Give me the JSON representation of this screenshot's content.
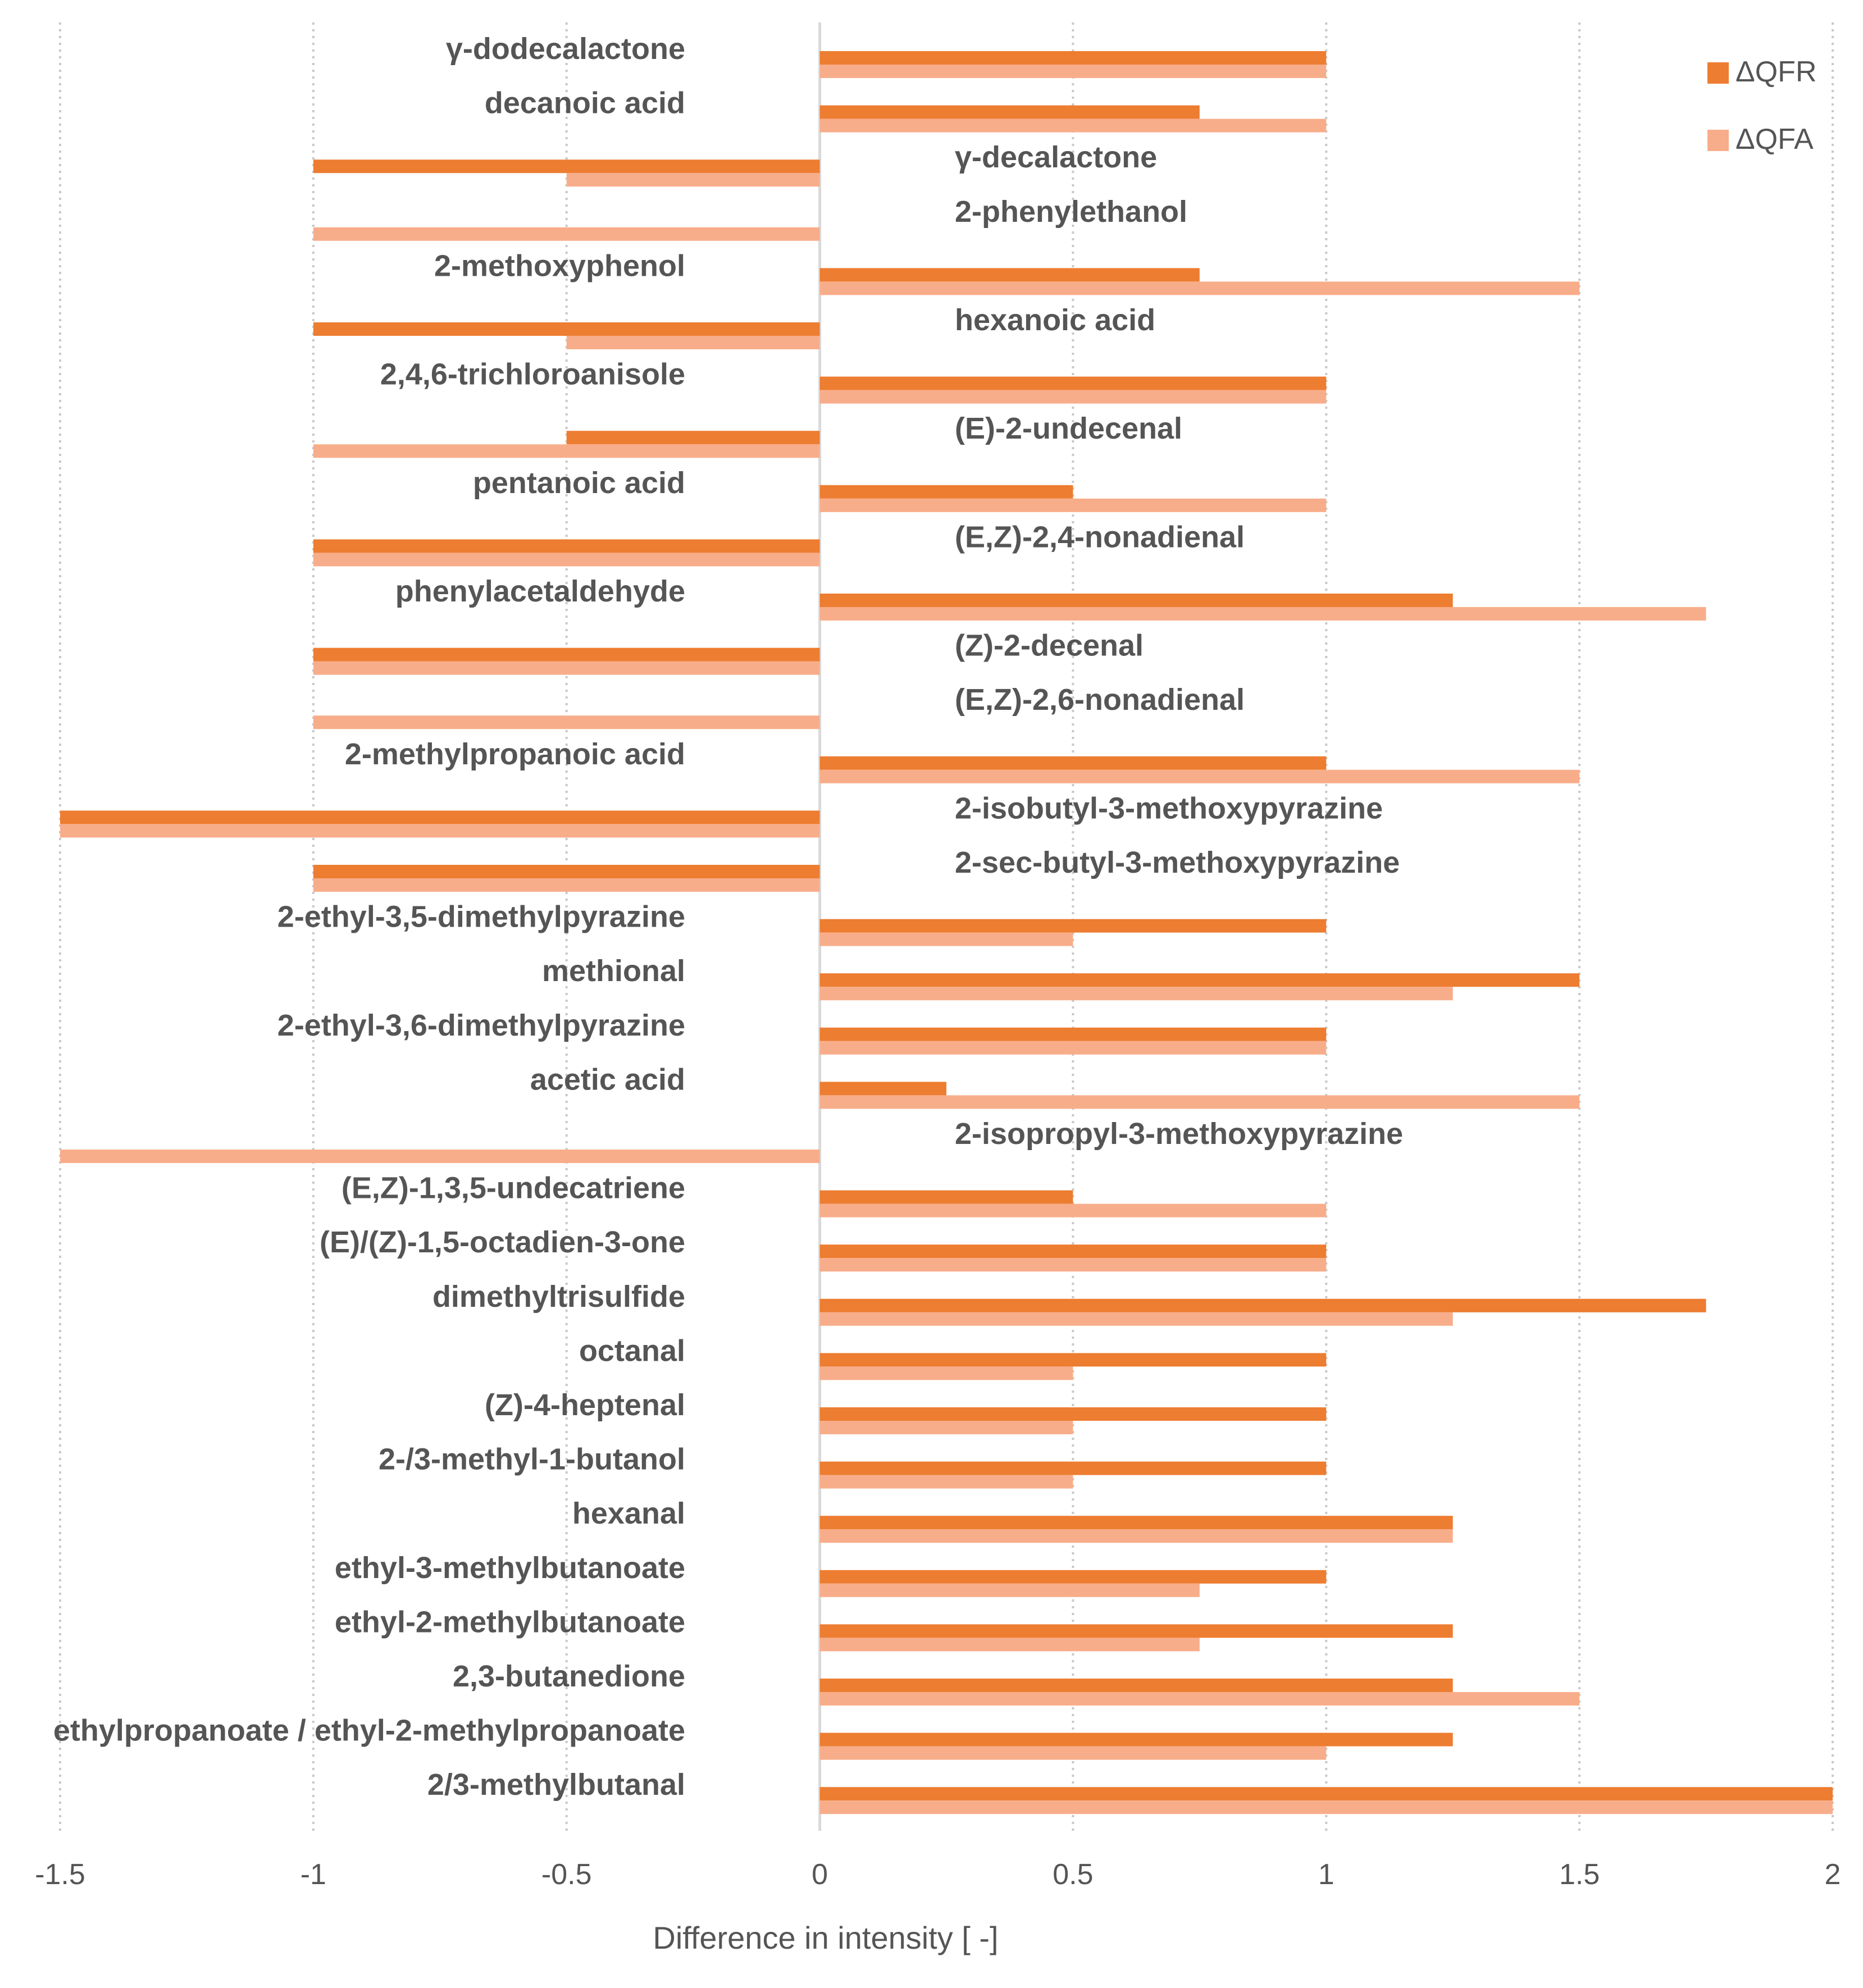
{
  "chart_data": {
    "type": "bar",
    "orientation": "horizontal",
    "xlabel": "Difference in intensity [ -]",
    "ylabel": "",
    "xlim": [
      -1.5,
      2
    ],
    "xticks": [
      -1.5,
      -1,
      -0.5,
      0,
      0.5,
      1,
      1.5,
      2
    ],
    "xtick_labels": [
      "-1.5",
      "-1",
      "-0.5",
      "0",
      "0.5",
      "1",
      "1.5",
      "2"
    ],
    "grid": "vertical dashed",
    "legend_position": "top-right",
    "colors": {
      "dQFR": "#ed7d31",
      "dQFA": "#f8ad8a"
    },
    "categories": [
      "γ-dodecalactone",
      "decanoic acid",
      "γ-decalactone",
      "2-phenylethanol",
      "2-methoxyphenol",
      "hexanoic acid",
      "2,4,6-trichloroanisole",
      "(E)-2-undecenal",
      "pentanoic acid",
      "(E,Z)-2,4-nonadienal",
      "phenylacetaldehyde",
      "(Z)-2-decenal",
      "(E,Z)-2,6-nonadienal",
      "2-methylpropanoic acid",
      "2-isobutyl-3-methoxypyrazine",
      "2-sec-butyl-3-methoxypyrazine",
      "2-ethyl-3,5-dimethylpyrazine",
      "methional",
      "2-ethyl-3,6-dimethylpyrazine",
      "acetic acid",
      "2-isopropyl-3-methoxypyrazine",
      "(E,Z)-1,3,5-undecatriene",
      "(E)/(Z)-1,5-octadien-3-one",
      "dimethyltrisulfide",
      "octanal",
      "(Z)-4-heptenal",
      "2-/3-methyl-1-butanol",
      "hexanal",
      "ethyl-3-methylbutanoate",
      "ethyl-2-methylbutanoate",
      "2,3-butanedione",
      "ethylpropanoate / ethyl-2-methylpropanoate",
      "2/3-methylbutanal"
    ],
    "series": [
      {
        "name": "ΔQFR",
        "values": [
          1,
          0.75,
          -1,
          0,
          0.75,
          -1,
          1,
          -0.5,
          0.5,
          -1,
          1.25,
          -1,
          0,
          1,
          -1.5,
          -1,
          1,
          1.5,
          1,
          0.25,
          0,
          0.5,
          1,
          1.75,
          1,
          1,
          1,
          1.25,
          1,
          1.25,
          1.25,
          1.25,
          2
        ]
      },
      {
        "name": "ΔQFA",
        "values": [
          1,
          1,
          -0.5,
          -1,
          1.5,
          -0.5,
          1,
          -1,
          1,
          -1,
          1.75,
          -1,
          -1,
          1.5,
          -1.5,
          -1,
          0.5,
          1.25,
          1,
          1.5,
          -1.5,
          1,
          1,
          1.25,
          0.5,
          0.5,
          0.5,
          1.25,
          0.75,
          0.75,
          1.5,
          1,
          2
        ]
      }
    ]
  }
}
